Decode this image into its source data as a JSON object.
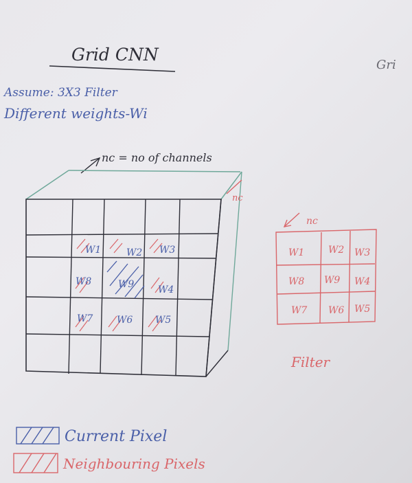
{
  "title": "Grid CNN",
  "title_right_fragment": "Gri",
  "assume_line": "Assume: 3X3 Filter",
  "weights_line": "Different weights-Wi",
  "channels_label": "nc = no of channels",
  "nc_grid": "nc",
  "nc_filter": "nc",
  "grid": {
    "rows": 5,
    "cols": 5,
    "cells": [
      {
        "row": 1,
        "col": 1,
        "label": "W1",
        "kind": "neighbour"
      },
      {
        "row": 1,
        "col": 2,
        "label": "W2",
        "kind": "neighbour"
      },
      {
        "row": 1,
        "col": 3,
        "label": "W3",
        "kind": "neighbour"
      },
      {
        "row": 2,
        "col": 1,
        "label": "W8",
        "kind": "neighbour"
      },
      {
        "row": 2,
        "col": 2,
        "label": "W9",
        "kind": "current"
      },
      {
        "row": 2,
        "col": 3,
        "label": "W4",
        "kind": "neighbour"
      },
      {
        "row": 3,
        "col": 1,
        "label": "W7",
        "kind": "neighbour"
      },
      {
        "row": 3,
        "col": 2,
        "label": "W6",
        "kind": "neighbour"
      },
      {
        "row": 3,
        "col": 3,
        "label": "W5",
        "kind": "neighbour"
      }
    ]
  },
  "filter": {
    "rows": [
      [
        "W1",
        "W2",
        "W3"
      ],
      [
        "W8",
        "W9",
        "W4"
      ],
      [
        "W7",
        "W6",
        "W5"
      ]
    ],
    "label": "Filter"
  },
  "legend": {
    "current": "Current Pixel",
    "neighbouring": "Neighbouring Pixels"
  },
  "colors": {
    "board": "#e8e7eb",
    "black_marker": "#2f2f38",
    "blue_marker": "#4a5fa8",
    "red_marker": "#d9666a",
    "teal_marker": "#6fa89a"
  }
}
